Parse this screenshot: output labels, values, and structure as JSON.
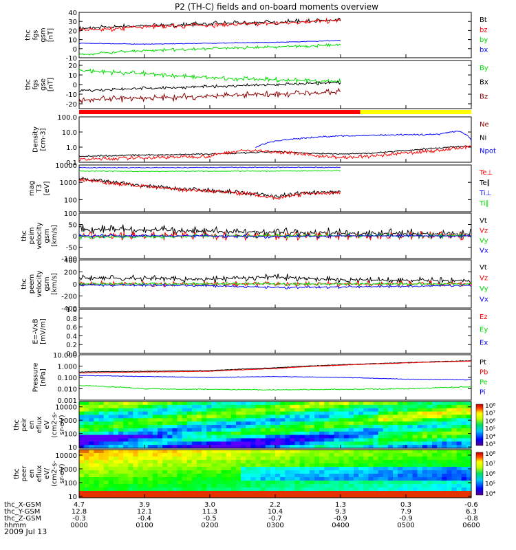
{
  "chart_data": {
    "type": "line",
    "title": "P2 (TH-C) fields and on-board moments overview",
    "date": "2009 Jul 13",
    "colors": {
      "black": "#000000",
      "red": "#ff0000",
      "green": "#00dd00",
      "blue": "#0000ff",
      "yellow": "#ffff00"
    },
    "panels": [
      {
        "id": "fgs-gsm",
        "ylabel": [
          "thc",
          "fgs",
          "gsm",
          "[nT]"
        ],
        "ylim": [
          -10,
          40
        ],
        "yticks": [
          "-10",
          "0",
          "10",
          "20",
          "30",
          "40"
        ],
        "legend": [
          {
            "t": "Bt",
            "c": "black"
          },
          {
            "t": "bz",
            "c": "red"
          },
          {
            "t": "by",
            "c": "green"
          },
          {
            "t": "bx",
            "c": "blue"
          }
        ],
        "series": [
          {
            "name": "Bt",
            "color": "black",
            "x": [
              0,
              0.25,
              0.5,
              0.75,
              1,
              1.25,
              1.5,
              1.75,
              2,
              2.25,
              2.5,
              2.75,
              3,
              3.25,
              3.5,
              3.75,
              4
            ],
            "y": [
              22,
              23,
              24,
              25,
              25,
              26,
              26,
              27,
              27,
              28,
              28,
              29,
              29,
              30,
              30,
              31,
              31
            ],
            "osc": 3
          },
          {
            "name": "bz",
            "color": "red",
            "x": [
              0,
              0.5,
              1,
              1.5,
              2,
              2.5,
              3,
              3.5,
              4
            ],
            "y": [
              20,
              22,
              24,
              25,
              26,
              27,
              28,
              30,
              31
            ],
            "osc": 3
          },
          {
            "name": "bx",
            "color": "blue",
            "x": [
              0,
              0.5,
              1,
              1.5,
              2,
              2.5,
              3,
              3.5,
              4
            ],
            "y": [
              6,
              5.5,
              5,
              5.5,
              6,
              6.5,
              7,
              8,
              9
            ],
            "osc": 0.5
          },
          {
            "name": "by",
            "color": "green",
            "x": [
              0,
              0.5,
              1,
              1.5,
              2,
              2.5,
              3,
              3.5,
              4
            ],
            "y": [
              -7,
              -4,
              -2,
              -1,
              0,
              1,
              2,
              3,
              4
            ],
            "osc": 2
          }
        ]
      },
      {
        "id": "fgs-gse",
        "ylabel": [
          "thc",
          "fgs",
          "gse",
          "[nT]"
        ],
        "ylim": [
          -25,
          25
        ],
        "yticks": [
          "-20",
          "-10",
          "0",
          "10",
          "20"
        ],
        "legend": [
          {
            "t": "By",
            "c": "green"
          },
          {
            "t": "Bx",
            "c": "black"
          },
          {
            "t": "Bz",
            "c": "darkred"
          }
        ],
        "series": [
          {
            "name": "By",
            "color": "green",
            "x": [
              0,
              0.5,
              1,
              1.5,
              2,
              2.5,
              3,
              3.5,
              4
            ],
            "y": [
              15,
              13,
              11,
              9,
              7,
              6,
              5,
              4,
              3
            ],
            "osc": 3
          },
          {
            "name": "Bx",
            "color": "black",
            "x": [
              0,
              0.5,
              1,
              1.5,
              2,
              2.5,
              3,
              3.5,
              4
            ],
            "y": [
              -6,
              -5,
              -4,
              -3,
              -2,
              -1,
              0,
              1,
              2
            ],
            "osc": 2
          },
          {
            "name": "Bz",
            "color": "darkred",
            "x": [
              0,
              0.5,
              1,
              1.5,
              2,
              2.5,
              3,
              3.5,
              4
            ],
            "y": [
              -16,
              -15,
              -14,
              -13,
              -12,
              -11,
              -10,
              -9,
              -8
            ],
            "osc": 4
          }
        ]
      },
      {
        "id": "density",
        "ylabel": [
          "Density",
          "[cm-3]"
        ],
        "log": true,
        "ylim": [
          0.1,
          100
        ],
        "yticks": [
          "0.1",
          "1.0",
          "10.0",
          "100.0"
        ],
        "legend": [
          {
            "t": "Ne",
            "c": "darkred"
          },
          {
            "t": "Ni",
            "c": "black"
          },
          {
            "t": "Npot",
            "c": "blue"
          }
        ],
        "series": [
          {
            "name": "Ni",
            "color": "black",
            "x": [
              0,
              1,
              2,
              2.5,
              3,
              3.5,
              4,
              4.5,
              5,
              5.5,
              6
            ],
            "y": [
              0.25,
              0.3,
              0.35,
              0.4,
              0.5,
              0.4,
              0.35,
              0.4,
              0.6,
              0.9,
              1.2
            ],
            "osc": 0.1
          },
          {
            "name": "Ne",
            "color": "red",
            "x": [
              0,
              1,
              2,
              2.5,
              3,
              3.5,
              4,
              4.5,
              5,
              5.5,
              6
            ],
            "y": [
              0.15,
              0.2,
              0.25,
              0.6,
              0.5,
              0.3,
              0.2,
              0.25,
              0.4,
              0.6,
              1.0
            ],
            "osc": 0.15
          },
          {
            "name": "Npot",
            "color": "blue",
            "x": [
              2.7,
              3,
              3.3,
              3.6,
              4,
              4.5,
              5,
              5.5,
              5.8,
              6
            ],
            "y": [
              1.0,
              2.5,
              3.5,
              4.5,
              5.5,
              6.0,
              6.5,
              7.0,
              12,
              3.0
            ],
            "osc": 0.1
          }
        ]
      },
      {
        "id": "temperature",
        "ylabel": [
          "mag",
          "T3",
          "[eV]"
        ],
        "log": true,
        "ylim": [
          20,
          10000
        ],
        "yticks": [
          "100",
          "1000",
          "10000"
        ],
        "legend": [
          {
            "t": "Te⊥",
            "c": "red"
          },
          {
            "t": "Te∥",
            "c": "black"
          },
          {
            "t": "Ti⊥",
            "c": "blue"
          },
          {
            "t": "Ti∥",
            "c": "green"
          }
        ],
        "series": [
          {
            "name": "Ti⊥",
            "color": "blue",
            "x": [
              0,
              1,
              2,
              3,
              4
            ],
            "y": [
              7000,
              7000,
              7200,
              7300,
              7300
            ],
            "osc": 0.05
          },
          {
            "name": "Ti∥",
            "color": "green",
            "x": [
              0,
              1,
              2,
              3,
              4
            ],
            "y": [
              4500,
              4300,
              4400,
              4500,
              4600
            ],
            "osc": 0.05
          },
          {
            "name": "Te∥",
            "color": "black",
            "x": [
              0,
              0.5,
              1,
              1.5,
              2,
              2.5,
              3,
              3.5,
              4
            ],
            "y": [
              1600,
              1000,
              600,
              450,
              350,
              250,
              150,
              250,
              280
            ],
            "osc": 0.15
          },
          {
            "name": "Te⊥",
            "color": "red",
            "x": [
              0,
              0.5,
              1,
              1.5,
              2,
              2.5,
              3,
              3.5,
              4
            ],
            "y": [
              1500,
              900,
              550,
              400,
              320,
              230,
              120,
              220,
              260
            ],
            "osc": 0.15
          }
        ]
      },
      {
        "id": "velocity-eesa",
        "ylabel": [
          "thc",
          "peim",
          "velocity",
          "gsm",
          "[km/s]"
        ],
        "ylim": [
          -100,
          100
        ],
        "yticks": [
          "-100",
          "-50",
          "0",
          "50",
          "100"
        ],
        "legend": [
          {
            "t": "Vt",
            "c": "black"
          },
          {
            "t": "Vz",
            "c": "red"
          },
          {
            "t": "Vy",
            "c": "green"
          },
          {
            "t": "Vx",
            "c": "blue"
          }
        ],
        "series": [
          {
            "name": "Vt",
            "color": "black",
            "x": [
              0,
              1,
              2,
              3,
              4,
              5,
              6
            ],
            "y": [
              30,
              25,
              20,
              15,
              12,
              10,
              8
            ],
            "osc": 25
          },
          {
            "name": "Vz",
            "color": "red",
            "x": [
              0,
              1,
              2,
              3,
              4,
              5,
              6
            ],
            "y": [
              0,
              0,
              0,
              0,
              0,
              0,
              0
            ],
            "osc": 20
          },
          {
            "name": "Vy",
            "color": "green",
            "x": [
              0,
              1,
              2,
              3,
              4,
              5,
              6
            ],
            "y": [
              -5,
              -5,
              0,
              0,
              0,
              0,
              0
            ],
            "osc": 10
          },
          {
            "name": "Vx",
            "color": "blue",
            "x": [
              0,
              1,
              2,
              3,
              4,
              5,
              6
            ],
            "y": [
              0,
              0,
              0,
              -5,
              0,
              0,
              0
            ],
            "osc": 8
          }
        ]
      },
      {
        "id": "velocity-esa",
        "ylabel": [
          "thc",
          "peem",
          "velocity",
          "gsm",
          "[km/s]"
        ],
        "ylim": [
          -400,
          400
        ],
        "yticks": [
          "-400",
          "-200",
          "0",
          "200",
          "400"
        ],
        "legend": [
          {
            "t": "Vt",
            "c": "black"
          },
          {
            "t": "Vz",
            "c": "red"
          },
          {
            "t": "Vy",
            "c": "green"
          },
          {
            "t": "Vx",
            "c": "blue"
          }
        ],
        "series": [
          {
            "name": "Vt",
            "color": "black",
            "x": [
              0,
              1,
              2,
              3,
              4,
              5,
              6
            ],
            "y": [
              100,
              90,
              80,
              120,
              70,
              60,
              50
            ],
            "osc": 60
          },
          {
            "name": "Vz",
            "color": "red",
            "x": [
              0,
              1,
              2,
              3,
              4,
              5,
              6
            ],
            "y": [
              0,
              0,
              0,
              0,
              0,
              0,
              0
            ],
            "osc": 50
          },
          {
            "name": "Vy",
            "color": "green",
            "x": [
              0,
              1,
              2,
              3,
              4,
              5,
              6
            ],
            "y": [
              0,
              0,
              0,
              0,
              0,
              0,
              0
            ],
            "osc": 30
          },
          {
            "name": "Vx",
            "color": "blue",
            "x": [
              0,
              1,
              2,
              3,
              4,
              5,
              6
            ],
            "y": [
              -20,
              -20,
              -30,
              -60,
              -50,
              -40,
              -20
            ],
            "osc": 25
          }
        ]
      },
      {
        "id": "efield",
        "ylabel": [
          "E=-VxB",
          "[mV/m]"
        ],
        "ylim": [
          0,
          1
        ],
        "yticks": [
          "0.0",
          "0.2",
          "0.4",
          "0.6",
          "0.8",
          "1.0"
        ],
        "legend": [
          {
            "t": "Ez",
            "c": "red"
          },
          {
            "t": "Ey",
            "c": "green"
          },
          {
            "t": "Ex",
            "c": "blue"
          }
        ],
        "series": []
      },
      {
        "id": "pressure",
        "ylabel": [
          "Pressure",
          "[nPa]"
        ],
        "log": true,
        "ylim": [
          0.001,
          10
        ],
        "yticks": [
          "0.001",
          "0.010",
          "0.100",
          "1.000",
          "10.000"
        ],
        "legend": [
          {
            "t": "Pt",
            "c": "black"
          },
          {
            "t": "Pb",
            "c": "red"
          },
          {
            "t": "Pe",
            "c": "green"
          },
          {
            "t": "Pi",
            "c": "blue"
          }
        ],
        "series": [
          {
            "name": "Pt",
            "color": "black",
            "x": [
              0,
              1,
              2,
              3,
              4,
              5,
              6
            ],
            "y": [
              0.3,
              0.35,
              0.4,
              0.7,
              1.3,
              2.0,
              3.0
            ],
            "osc": 0.05
          },
          {
            "name": "Pb",
            "color": "red",
            "x": [
              0,
              1,
              2,
              3,
              4,
              5,
              6
            ],
            "y": [
              0.25,
              0.3,
              0.35,
              0.6,
              1.2,
              1.9,
              2.8
            ],
            "osc": 0.05
          },
          {
            "name": "Pi",
            "color": "blue",
            "x": [
              0,
              1,
              2,
              3,
              4,
              5,
              6
            ],
            "y": [
              0.15,
              0.12,
              0.1,
              0.12,
              0.1,
              0.07,
              0.06
            ],
            "osc": 0.05
          },
          {
            "name": "Pe",
            "color": "green",
            "x": [
              0,
              1,
              2,
              3,
              4,
              5,
              6
            ],
            "y": [
              0.02,
              0.01,
              0.009,
              0.008,
              0.009,
              0.01,
              0.015
            ],
            "osc": 0.1
          }
        ]
      },
      {
        "id": "ion-spectrum",
        "type": "heatmap",
        "ylabel": [
          "thc",
          "peir",
          "en",
          "eflux",
          "eV",
          "(cm2-s-",
          "sr-eV)"
        ],
        "log": true,
        "ylim": [
          8,
          25000
        ],
        "yticks": [
          "10",
          "100",
          "1000",
          "10000"
        ],
        "colorbar": [
          "10³",
          "10⁴",
          "10⁵",
          "10⁶",
          "10⁷",
          "10⁸"
        ]
      },
      {
        "id": "electron-spectrum",
        "type": "heatmap",
        "ylabel": [
          "thc",
          "peer",
          "en",
          "eflux",
          "eV/",
          "(cm2-s-",
          "sr-eV)"
        ],
        "log": true,
        "ylim": [
          8,
          25000
        ],
        "yticks": [
          "10",
          "100",
          "1000",
          "10000"
        ],
        "colorbar": [
          "10⁴",
          "10⁵",
          "10⁶",
          "10⁷",
          "10⁸"
        ]
      }
    ],
    "xaxis": {
      "rows": [
        {
          "label": "thc_X-GSM",
          "values": [
            "4.7",
            "3.9",
            "3.0",
            "2.2",
            "1.3",
            "0.3",
            "-0.6"
          ]
        },
        {
          "label": "thc_Y-GSM",
          "values": [
            "12.8",
            "12.1",
            "11.3",
            "10.4",
            "9.3",
            "7.9",
            "6.3"
          ]
        },
        {
          "label": "thc_Z-GSM",
          "values": [
            "-0.3",
            "-0.4",
            "-0.5",
            "-0.7",
            "-0.9",
            "-0.9",
            "-0.8"
          ]
        },
        {
          "label": "hhmm",
          "values": [
            "0000",
            "0100",
            "0200",
            "0300",
            "0400",
            "0500",
            "0600"
          ]
        }
      ]
    }
  }
}
